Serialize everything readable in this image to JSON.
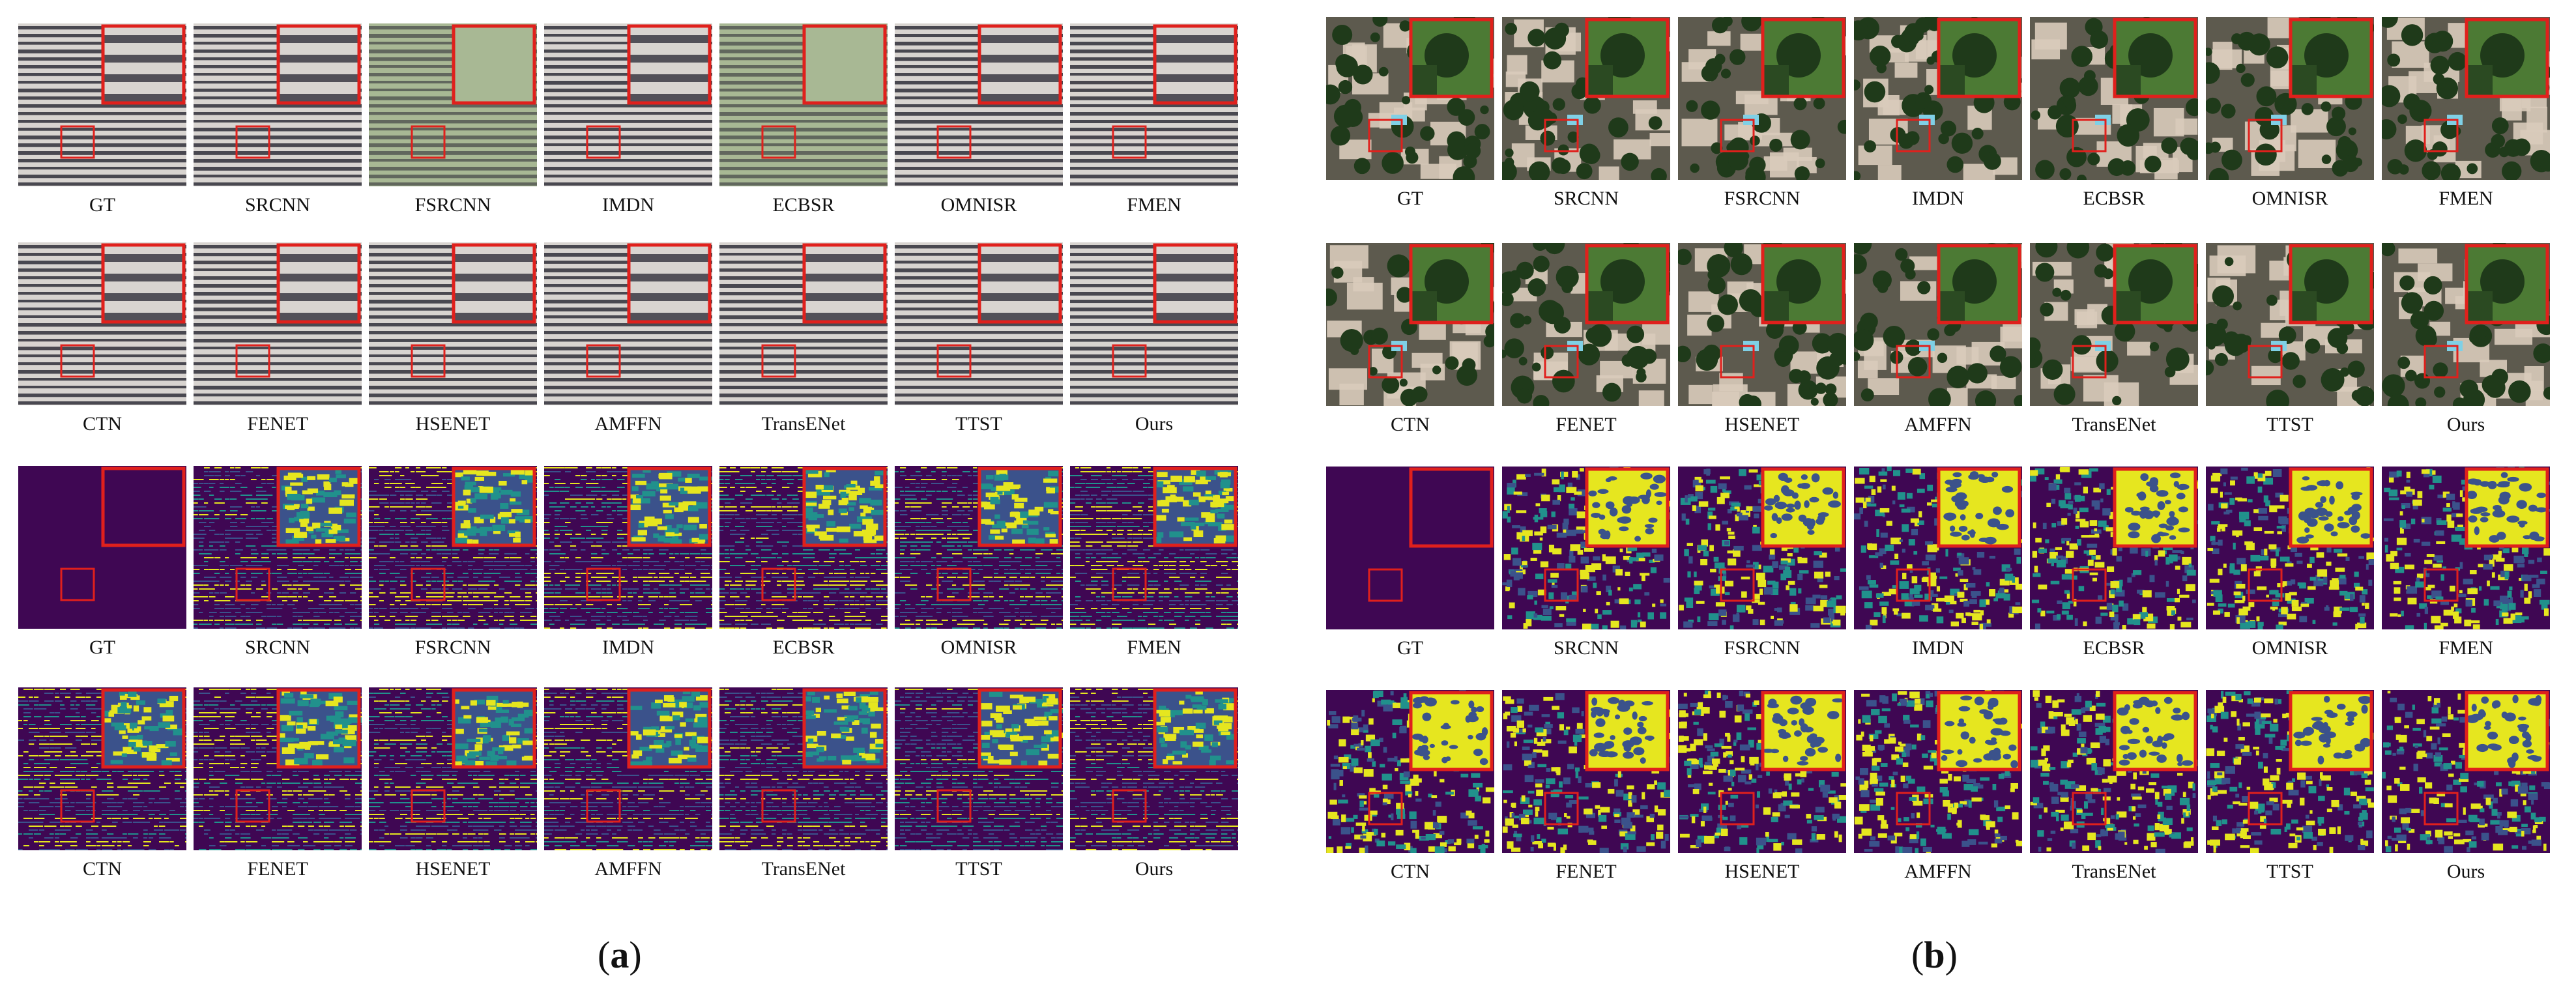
{
  "panels": [
    {
      "label_prefix": "(",
      "label_letter": "a",
      "label_suffix": ")",
      "rows": [
        {
          "style": "stripe-rgb",
          "labels": [
            "GT",
            "SRCNN",
            "FSRCNN",
            "IMDN",
            "ECBSR",
            "OMNISR",
            "FMEN"
          ]
        },
        {
          "style": "stripe-rgb",
          "labels": [
            "CTN",
            "FENET",
            "HSENET",
            "AMFFN",
            "TransENet",
            "TTST",
            "Ours"
          ]
        },
        {
          "style": "stripe-err",
          "labels": [
            "GT",
            "SRCNN",
            "FSRCNN",
            "IMDN",
            "ECBSR",
            "OMNISR",
            "FMEN"
          ]
        },
        {
          "style": "stripe-err",
          "labels": [
            "CTN",
            "FENET",
            "HSENET",
            "AMFFN",
            "TransENet",
            "TTST",
            "Ours"
          ]
        }
      ]
    },
    {
      "label_prefix": "(",
      "label_letter": "b",
      "label_suffix": ")",
      "rows": [
        {
          "style": "aerial-rgb",
          "labels": [
            "GT",
            "SRCNN",
            "FSRCNN",
            "IMDN",
            "ECBSR",
            "OMNISR",
            "FMEN"
          ]
        },
        {
          "style": "aerial-rgb",
          "labels": [
            "CTN",
            "FENET",
            "HSENET",
            "AMFFN",
            "TransENet",
            "TTST",
            "Ours"
          ]
        },
        {
          "style": "aerial-err",
          "labels": [
            "GT",
            "SRCNN",
            "FSRCNN",
            "IMDN",
            "ECBSR",
            "OMNISR",
            "FMEN"
          ]
        },
        {
          "style": "aerial-err",
          "labels": [
            "CTN",
            "FENET",
            "HSENET",
            "AMFFN",
            "TransENet",
            "TTST",
            "Ours"
          ]
        }
      ]
    }
  ],
  "colors": {
    "box": "#e0201c",
    "err_bg": "#3f0753",
    "err_low": "#3b528b",
    "err_mid": "#21918c",
    "err_high": "#e6e61f",
    "stripe_light": "#d8d4d0",
    "stripe_dark": "#262430",
    "stripe_green": "#a8b894",
    "aerial_tree": "#1f3a1a",
    "aerial_roof": "#d9cbbb",
    "aerial_pool": "#7fd0e6"
  }
}
